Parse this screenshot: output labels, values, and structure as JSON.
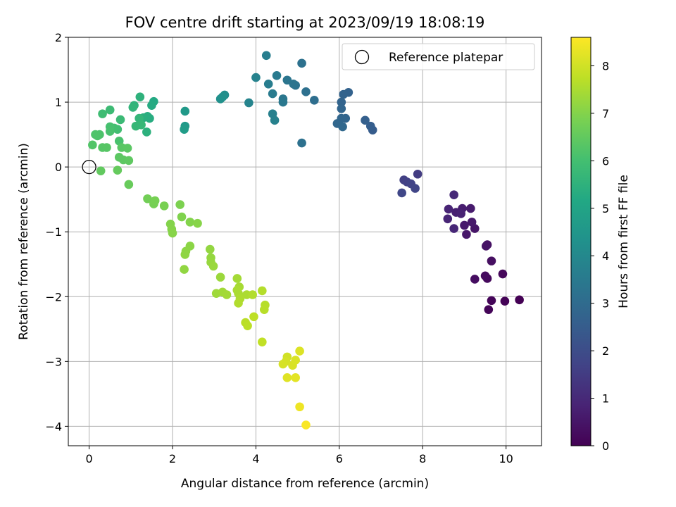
{
  "chart_data": {
    "type": "scatter",
    "title": "FOV centre drift starting at 2023/09/19 18:08:19",
    "xlabel": "Angular distance from reference (arcmin)",
    "ylabel": "Rotation from reference (arcmin)",
    "xlim": [
      -0.5,
      10.85
    ],
    "ylim": [
      -4.3,
      2.0
    ],
    "xticks": [
      0,
      2,
      4,
      6,
      8,
      10
    ],
    "yticks": [
      2,
      1,
      0,
      -1,
      -2,
      -3,
      -4
    ],
    "grid": true,
    "legend": {
      "position": "top-right",
      "entries": [
        "Reference platepar"
      ]
    },
    "reference_point": {
      "x": 0,
      "y": 0,
      "marker": "open-circle"
    },
    "colorbar": {
      "label": "Hours from first FF file",
      "colormap": "viridis",
      "range": [
        0,
        8.6
      ],
      "ticks": [
        0,
        1,
        2,
        3,
        4,
        5,
        6,
        7,
        8
      ]
    },
    "points": [
      {
        "x": 10.32,
        "y": -2.05,
        "c": 0.0
      },
      {
        "x": 9.97,
        "y": -2.07,
        "c": 0.05
      },
      {
        "x": 9.65,
        "y": -2.06,
        "c": 0.1
      },
      {
        "x": 9.58,
        "y": -2.2,
        "c": 0.1
      },
      {
        "x": 9.92,
        "y": -1.65,
        "c": 0.15
      },
      {
        "x": 9.55,
        "y": -1.72,
        "c": 0.2
      },
      {
        "x": 9.5,
        "y": -1.68,
        "c": 0.25
      },
      {
        "x": 9.25,
        "y": -1.73,
        "c": 0.3
      },
      {
        "x": 9.65,
        "y": -1.45,
        "c": 0.35
      },
      {
        "x": 9.55,
        "y": -1.2,
        "c": 0.4
      },
      {
        "x": 9.52,
        "y": -1.22,
        "c": 0.45
      },
      {
        "x": 9.25,
        "y": -0.95,
        "c": 0.5
      },
      {
        "x": 9.05,
        "y": -1.04,
        "c": 0.55
      },
      {
        "x": 9.18,
        "y": -0.85,
        "c": 0.6
      },
      {
        "x": 9.0,
        "y": -0.9,
        "c": 0.62
      },
      {
        "x": 9.15,
        "y": -0.64,
        "c": 0.65
      },
      {
        "x": 8.95,
        "y": -0.64,
        "c": 0.7
      },
      {
        "x": 8.8,
        "y": -0.7,
        "c": 0.75
      },
      {
        "x": 8.92,
        "y": -0.72,
        "c": 0.8
      },
      {
        "x": 8.62,
        "y": -0.65,
        "c": 0.85
      },
      {
        "x": 8.6,
        "y": -0.8,
        "c": 0.9
      },
      {
        "x": 8.75,
        "y": -0.95,
        "c": 0.95
      },
      {
        "x": 8.75,
        "y": -0.43,
        "c": 1.0
      },
      {
        "x": 7.88,
        "y": -0.11,
        "c": 1.5
      },
      {
        "x": 7.55,
        "y": -0.2,
        "c": 1.6
      },
      {
        "x": 7.62,
        "y": -0.23,
        "c": 1.65
      },
      {
        "x": 7.72,
        "y": -0.26,
        "c": 1.7
      },
      {
        "x": 7.82,
        "y": -0.33,
        "c": 1.75
      },
      {
        "x": 7.5,
        "y": -0.4,
        "c": 1.8
      },
      {
        "x": 6.8,
        "y": 0.57,
        "c": 2.5
      },
      {
        "x": 6.75,
        "y": 0.63,
        "c": 2.55
      },
      {
        "x": 6.62,
        "y": 0.72,
        "c": 2.6
      },
      {
        "x": 6.22,
        "y": 1.15,
        "c": 2.7
      },
      {
        "x": 6.1,
        "y": 1.12,
        "c": 2.72
      },
      {
        "x": 6.05,
        "y": 1.0,
        "c": 2.75
      },
      {
        "x": 6.05,
        "y": 0.9,
        "c": 2.78
      },
      {
        "x": 6.15,
        "y": 0.75,
        "c": 2.8
      },
      {
        "x": 6.05,
        "y": 0.75,
        "c": 2.82
      },
      {
        "x": 5.95,
        "y": 0.67,
        "c": 2.85
      },
      {
        "x": 6.08,
        "y": 0.62,
        "c": 2.88
      },
      {
        "x": 5.4,
        "y": 1.03,
        "c": 3.1
      },
      {
        "x": 5.2,
        "y": 1.16,
        "c": 3.15
      },
      {
        "x": 5.1,
        "y": 1.6,
        "c": 3.2
      },
      {
        "x": 4.95,
        "y": 1.26,
        "c": 3.25
      },
      {
        "x": 4.9,
        "y": 1.28,
        "c": 3.3
      },
      {
        "x": 4.75,
        "y": 1.34,
        "c": 3.35
      },
      {
        "x": 4.65,
        "y": 1.05,
        "c": 3.4
      },
      {
        "x": 4.65,
        "y": 1.0,
        "c": 3.45
      },
      {
        "x": 4.5,
        "y": 1.41,
        "c": 3.5
      },
      {
        "x": 4.4,
        "y": 1.13,
        "c": 3.55
      },
      {
        "x": 4.3,
        "y": 1.28,
        "c": 3.6
      },
      {
        "x": 4.25,
        "y": 1.72,
        "c": 3.65
      },
      {
        "x": 4.4,
        "y": 0.82,
        "c": 3.7
      },
      {
        "x": 4.45,
        "y": 0.72,
        "c": 3.75
      },
      {
        "x": 4.0,
        "y": 1.38,
        "c": 3.8
      },
      {
        "x": 3.83,
        "y": 0.99,
        "c": 3.85
      },
      {
        "x": 5.1,
        "y": 0.37,
        "c": 3.2
      },
      {
        "x": 3.25,
        "y": 1.11,
        "c": 4.2
      },
      {
        "x": 3.2,
        "y": 1.08,
        "c": 4.25
      },
      {
        "x": 3.15,
        "y": 1.05,
        "c": 4.3
      },
      {
        "x": 2.3,
        "y": 0.86,
        "c": 4.6
      },
      {
        "x": 2.3,
        "y": 0.63,
        "c": 4.65
      },
      {
        "x": 2.28,
        "y": 0.58,
        "c": 4.7
      },
      {
        "x": 1.55,
        "y": 1.01,
        "c": 5.2
      },
      {
        "x": 1.5,
        "y": 0.95,
        "c": 5.25
      },
      {
        "x": 1.45,
        "y": 0.75,
        "c": 5.3
      },
      {
        "x": 1.4,
        "y": 0.78,
        "c": 5.35
      },
      {
        "x": 1.3,
        "y": 0.76,
        "c": 5.4
      },
      {
        "x": 1.38,
        "y": 0.54,
        "c": 5.45
      },
      {
        "x": 1.22,
        "y": 1.08,
        "c": 5.5
      },
      {
        "x": 1.08,
        "y": 0.95,
        "c": 5.55
      },
      {
        "x": 1.05,
        "y": 0.92,
        "c": 5.6
      },
      {
        "x": 1.2,
        "y": 0.75,
        "c": 5.65
      },
      {
        "x": 1.12,
        "y": 0.63,
        "c": 5.7
      },
      {
        "x": 1.25,
        "y": 0.65,
        "c": 5.72
      },
      {
        "x": 0.75,
        "y": 0.73,
        "c": 5.8
      },
      {
        "x": 0.5,
        "y": 0.88,
        "c": 5.85
      },
      {
        "x": 0.32,
        "y": 0.82,
        "c": 5.9
      },
      {
        "x": 0.68,
        "y": 0.58,
        "c": 5.95
      },
      {
        "x": 0.6,
        "y": 0.6,
        "c": 6.0
      },
      {
        "x": 0.5,
        "y": 0.62,
        "c": 6.05
      },
      {
        "x": 0.5,
        "y": 0.55,
        "c": 6.08
      },
      {
        "x": 0.72,
        "y": 0.4,
        "c": 6.1
      },
      {
        "x": 0.25,
        "y": 0.5,
        "c": 6.15
      },
      {
        "x": 0.2,
        "y": 0.48,
        "c": 6.18
      },
      {
        "x": 0.15,
        "y": 0.5,
        "c": 6.2
      },
      {
        "x": 0.08,
        "y": 0.34,
        "c": 6.25
      },
      {
        "x": 0.32,
        "y": 0.3,
        "c": 6.3
      },
      {
        "x": 0.42,
        "y": 0.3,
        "c": 6.33
      },
      {
        "x": 0.78,
        "y": 0.3,
        "c": 6.35
      },
      {
        "x": 0.92,
        "y": 0.29,
        "c": 6.38
      },
      {
        "x": 0.72,
        "y": 0.15,
        "c": 6.4
      },
      {
        "x": 0.82,
        "y": 0.11,
        "c": 6.42
      },
      {
        "x": 0.95,
        "y": 0.1,
        "c": 6.45
      },
      {
        "x": 0.28,
        "y": -0.06,
        "c": 6.5
      },
      {
        "x": 0.68,
        "y": -0.05,
        "c": 6.55
      },
      {
        "x": 0.95,
        "y": -0.27,
        "c": 6.6
      },
      {
        "x": 1.4,
        "y": -0.49,
        "c": 6.75
      },
      {
        "x": 1.55,
        "y": -0.57,
        "c": 6.8
      },
      {
        "x": 1.58,
        "y": -0.52,
        "c": 6.82
      },
      {
        "x": 1.8,
        "y": -0.6,
        "c": 6.85
      },
      {
        "x": 2.18,
        "y": -0.58,
        "c": 6.9
      },
      {
        "x": 2.22,
        "y": -0.77,
        "c": 6.95
      },
      {
        "x": 2.42,
        "y": -0.85,
        "c": 7.0
      },
      {
        "x": 2.6,
        "y": -0.87,
        "c": 7.05
      },
      {
        "x": 1.95,
        "y": -0.88,
        "c": 7.0
      },
      {
        "x": 1.98,
        "y": -0.96,
        "c": 7.02
      },
      {
        "x": 2.0,
        "y": -1.02,
        "c": 7.05
      },
      {
        "x": 2.42,
        "y": -1.22,
        "c": 7.1
      },
      {
        "x": 2.32,
        "y": -1.3,
        "c": 7.12
      },
      {
        "x": 2.3,
        "y": -1.35,
        "c": 7.15
      },
      {
        "x": 2.28,
        "y": -1.58,
        "c": 7.18
      },
      {
        "x": 2.9,
        "y": -1.27,
        "c": 7.2
      },
      {
        "x": 2.92,
        "y": -1.4,
        "c": 7.22
      },
      {
        "x": 2.92,
        "y": -1.47,
        "c": 7.25
      },
      {
        "x": 2.98,
        "y": -1.53,
        "c": 7.28
      },
      {
        "x": 3.15,
        "y": -1.7,
        "c": 7.3
      },
      {
        "x": 3.05,
        "y": -1.95,
        "c": 7.35
      },
      {
        "x": 3.2,
        "y": -1.93,
        "c": 7.38
      },
      {
        "x": 3.3,
        "y": -1.97,
        "c": 7.4
      },
      {
        "x": 3.55,
        "y": -1.72,
        "c": 7.42
      },
      {
        "x": 3.6,
        "y": -1.85,
        "c": 7.45
      },
      {
        "x": 3.55,
        "y": -1.9,
        "c": 7.48
      },
      {
        "x": 3.58,
        "y": -1.95,
        "c": 7.5
      },
      {
        "x": 3.78,
        "y": -1.97,
        "c": 7.52
      },
      {
        "x": 3.62,
        "y": -2.03,
        "c": 7.55
      },
      {
        "x": 3.58,
        "y": -2.1,
        "c": 7.58
      },
      {
        "x": 3.92,
        "y": -1.97,
        "c": 7.6
      },
      {
        "x": 4.15,
        "y": -1.91,
        "c": 7.62
      },
      {
        "x": 4.22,
        "y": -2.13,
        "c": 7.65
      },
      {
        "x": 4.2,
        "y": -2.2,
        "c": 7.68
      },
      {
        "x": 3.75,
        "y": -2.4,
        "c": 7.7
      },
      {
        "x": 3.8,
        "y": -2.45,
        "c": 7.72
      },
      {
        "x": 3.95,
        "y": -2.31,
        "c": 7.75
      },
      {
        "x": 4.15,
        "y": -2.7,
        "c": 7.8
      },
      {
        "x": 4.75,
        "y": -2.93,
        "c": 8.0
      },
      {
        "x": 4.72,
        "y": -3.0,
        "c": 8.05
      },
      {
        "x": 4.65,
        "y": -3.04,
        "c": 8.08
      },
      {
        "x": 4.88,
        "y": -3.06,
        "c": 8.1
      },
      {
        "x": 4.95,
        "y": -2.98,
        "c": 8.12
      },
      {
        "x": 5.05,
        "y": -2.84,
        "c": 8.15
      },
      {
        "x": 4.75,
        "y": -3.25,
        "c": 8.2
      },
      {
        "x": 4.95,
        "y": -3.25,
        "c": 8.25
      },
      {
        "x": 5.05,
        "y": -3.7,
        "c": 8.4
      },
      {
        "x": 5.2,
        "y": -3.98,
        "c": 8.55
      }
    ]
  }
}
